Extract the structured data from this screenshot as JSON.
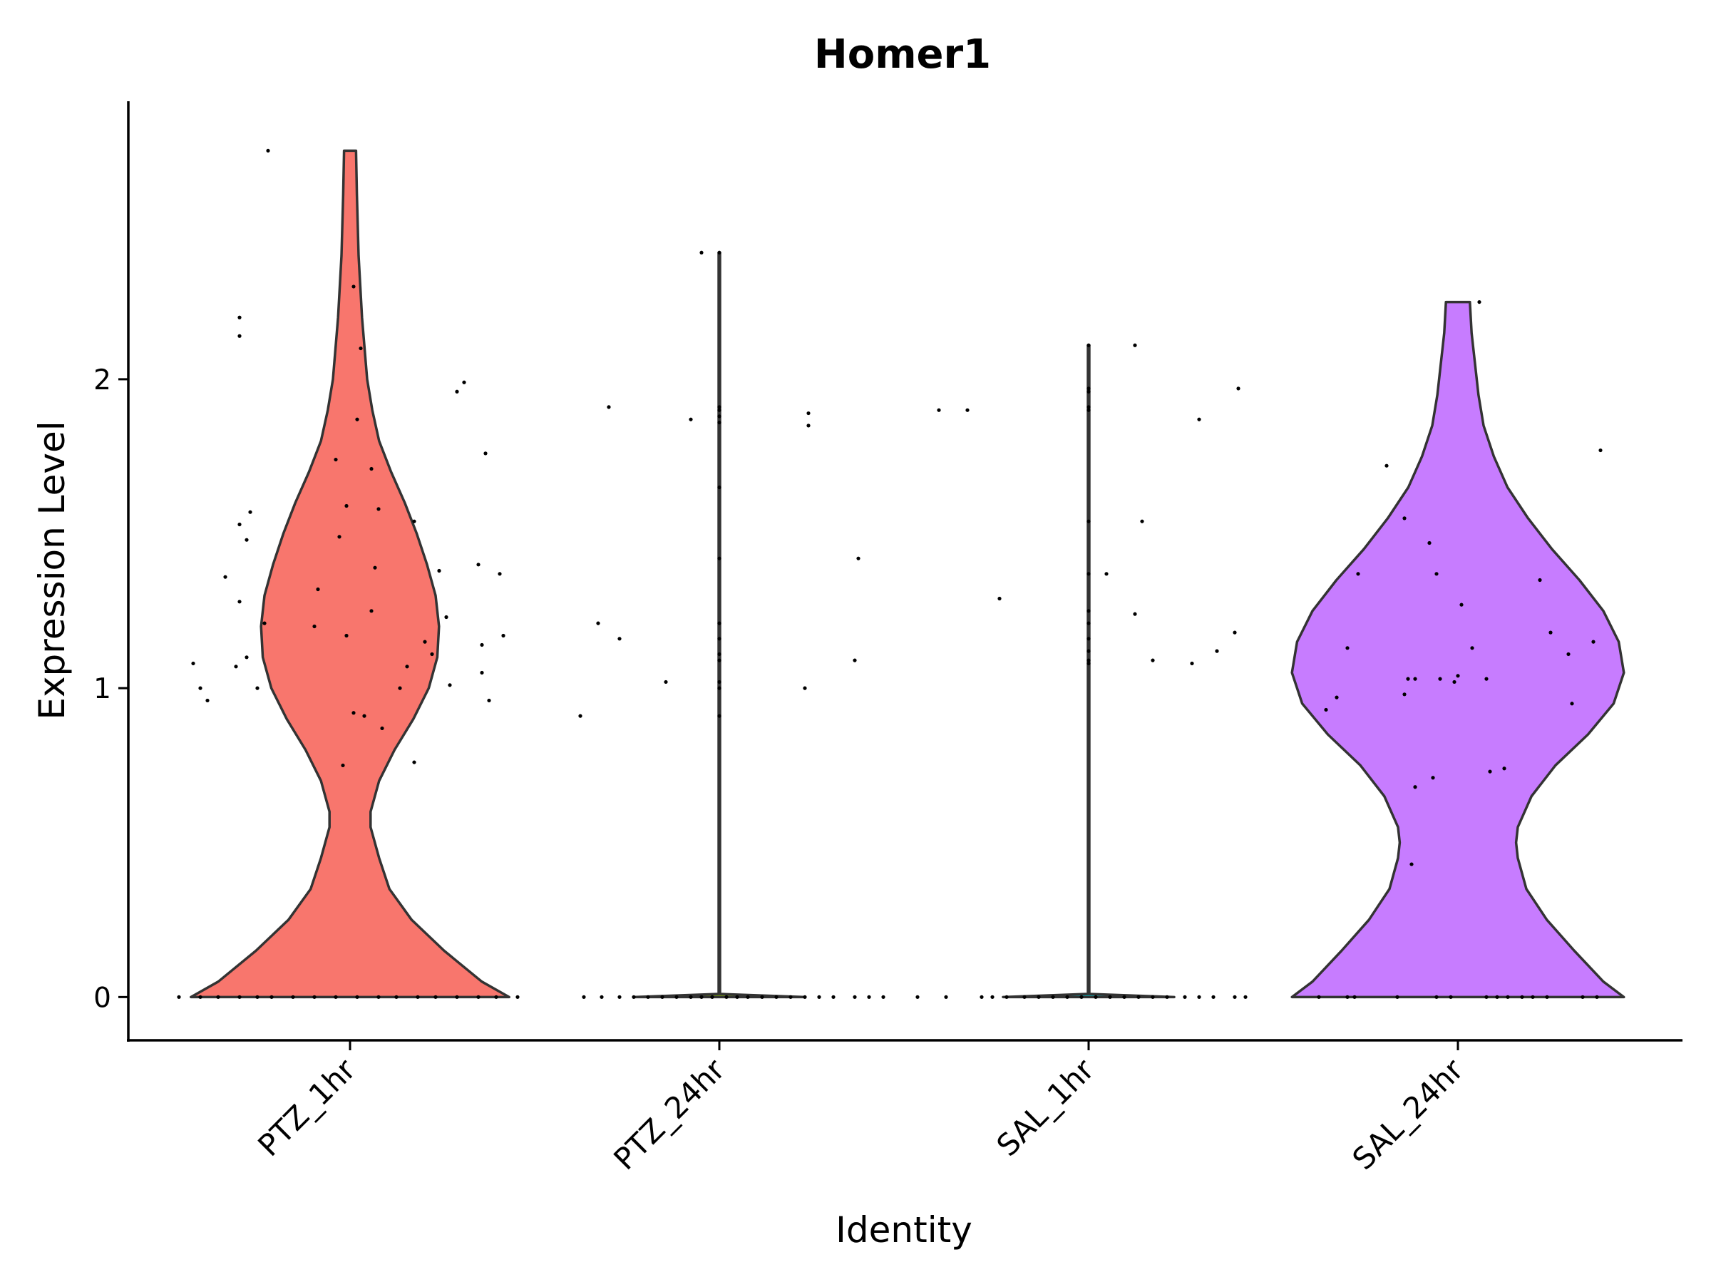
{
  "chart_data": {
    "type": "violin",
    "title": "Homer1",
    "xlabel": "Identity",
    "ylabel": "Expression Level",
    "ylim": [
      -0.14,
      2.9
    ],
    "yticks": [
      0,
      1,
      2
    ],
    "grid": false,
    "legend": "none",
    "categories": [
      "PTZ_1hr",
      "PTZ_24hr",
      "SAL_1hr",
      "SAL_24hr"
    ],
    "series": [
      {
        "category": "PTZ_1hr",
        "color": "#F8766D",
        "max": 2.74,
        "density": [
          [
            0,
            0.93
          ],
          [
            0.05,
            0.77
          ],
          [
            0.15,
            0.55
          ],
          [
            0.25,
            0.36
          ],
          [
            0.35,
            0.23
          ],
          [
            0.45,
            0.17
          ],
          [
            0.55,
            0.12
          ],
          [
            0.6,
            0.12
          ],
          [
            0.7,
            0.17
          ],
          [
            0.8,
            0.26
          ],
          [
            0.9,
            0.37
          ],
          [
            1.0,
            0.46
          ],
          [
            1.1,
            0.51
          ],
          [
            1.2,
            0.52
          ],
          [
            1.3,
            0.5
          ],
          [
            1.4,
            0.45
          ],
          [
            1.5,
            0.39
          ],
          [
            1.6,
            0.32
          ],
          [
            1.7,
            0.24
          ],
          [
            1.8,
            0.17
          ],
          [
            1.9,
            0.13
          ],
          [
            2.0,
            0.1
          ],
          [
            2.2,
            0.07
          ],
          [
            2.4,
            0.05
          ],
          [
            2.6,
            0.04
          ],
          [
            2.74,
            0.035
          ]
        ],
        "points": [
          [
            0,
            -0.48
          ],
          [
            0,
            -0.42
          ],
          [
            0,
            -0.37
          ],
          [
            0,
            -0.31
          ],
          [
            0,
            -0.26
          ],
          [
            0,
            -0.22
          ],
          [
            0,
            -0.16
          ],
          [
            0,
            -0.1
          ],
          [
            0,
            -0.04
          ],
          [
            0,
            0.02
          ],
          [
            0,
            0.08
          ],
          [
            0,
            0.13
          ],
          [
            0,
            0.19
          ],
          [
            0,
            0.24
          ],
          [
            0,
            0.3
          ],
          [
            0,
            0.36
          ],
          [
            0,
            0.41
          ],
          [
            0,
            0.47
          ],
          [
            2.74,
            -0.23
          ],
          [
            2.3,
            0.01
          ],
          [
            2.2,
            -0.31
          ],
          [
            2.14,
            -0.31
          ],
          [
            2.1,
            0.03
          ],
          [
            1.99,
            0.32
          ],
          [
            1.96,
            0.3
          ],
          [
            1.87,
            0.02
          ],
          [
            1.76,
            0.38
          ],
          [
            1.74,
            -0.04
          ],
          [
            1.71,
            0.06
          ],
          [
            1.59,
            -0.01
          ],
          [
            1.58,
            0.08
          ],
          [
            1.57,
            -0.28
          ],
          [
            1.54,
            0.18
          ],
          [
            1.53,
            -0.31
          ],
          [
            1.49,
            -0.03
          ],
          [
            1.48,
            -0.29
          ],
          [
            1.4,
            0.36
          ],
          [
            1.39,
            0.07
          ],
          [
            1.38,
            0.25
          ],
          [
            1.37,
            0.42
          ],
          [
            1.36,
            -0.35
          ],
          [
            1.32,
            -0.09
          ],
          [
            1.28,
            -0.31
          ],
          [
            1.25,
            0.06
          ],
          [
            1.23,
            0.27
          ],
          [
            1.21,
            -0.24
          ],
          [
            1.2,
            -0.1
          ],
          [
            1.17,
            -0.01
          ],
          [
            1.17,
            0.43
          ],
          [
            1.15,
            0.21
          ],
          [
            1.14,
            0.37
          ],
          [
            1.11,
            0.23
          ],
          [
            1.1,
            -0.29
          ],
          [
            1.08,
            -0.44
          ],
          [
            1.07,
            0.16
          ],
          [
            1.07,
            -0.32
          ],
          [
            1.05,
            0.37
          ],
          [
            1.01,
            0.28
          ],
          [
            1.0,
            -0.42
          ],
          [
            1.0,
            -0.26
          ],
          [
            1.0,
            0.14
          ],
          [
            0.96,
            -0.4
          ],
          [
            0.96,
            0.39
          ],
          [
            0.92,
            0.01
          ],
          [
            0.91,
            0.04
          ],
          [
            0.87,
            0.09
          ],
          [
            0.76,
            0.18
          ],
          [
            0.75,
            -0.02
          ]
        ]
      },
      {
        "category": "PTZ_24hr",
        "color": "#7CAE00",
        "max": 2.41,
        "density": [
          [
            0,
            0.5
          ],
          [
            0.01,
            0.004
          ],
          [
            0.2,
            0.004
          ],
          [
            2.41,
            0.004
          ]
        ],
        "points": [
          [
            0,
            -0.38
          ],
          [
            0,
            -0.33
          ],
          [
            0,
            -0.28
          ],
          [
            0,
            -0.24
          ],
          [
            0,
            -0.2
          ],
          [
            0,
            -0.16
          ],
          [
            0,
            -0.12
          ],
          [
            0,
            -0.08
          ],
          [
            0,
            -0.05
          ],
          [
            0,
            -0.02
          ],
          [
            0,
            0.02
          ],
          [
            0,
            0.05
          ],
          [
            0,
            0.08
          ],
          [
            0,
            0.12
          ],
          [
            0,
            0.16
          ],
          [
            0,
            0.2
          ],
          [
            0,
            0.24
          ],
          [
            0,
            0.28
          ],
          [
            0,
            0.32
          ],
          [
            0,
            0.38
          ],
          [
            0,
            0.42
          ],
          [
            0,
            0.46
          ],
          [
            2.41,
            -0.05
          ],
          [
            2.41,
            0.0
          ],
          [
            1.91,
            -0.31
          ],
          [
            1.91,
            0.0
          ],
          [
            1.9,
            0.0
          ],
          [
            1.89,
            0.25
          ],
          [
            1.88,
            0.0
          ],
          [
            1.87,
            -0.08
          ],
          [
            1.86,
            0.0
          ],
          [
            1.85,
            0.25
          ],
          [
            1.65,
            0.0
          ],
          [
            1.42,
            0.0
          ],
          [
            1.42,
            0.39
          ],
          [
            1.21,
            0.0
          ],
          [
            1.21,
            -0.34
          ],
          [
            1.16,
            0.0
          ],
          [
            1.16,
            -0.28
          ],
          [
            1.11,
            0.0
          ],
          [
            1.09,
            0.0
          ],
          [
            1.09,
            0.38
          ],
          [
            1.02,
            0.0
          ],
          [
            1.02,
            -0.15
          ],
          [
            1.0,
            0.0
          ],
          [
            1.0,
            0.24
          ],
          [
            0.91,
            0.0
          ],
          [
            0.91,
            -0.39
          ]
        ]
      },
      {
        "category": "SAL_1hr",
        "color": "#00BFC4",
        "max": 2.11,
        "density": [
          [
            0,
            0.5
          ],
          [
            0.01,
            0.004
          ],
          [
            0.2,
            0.004
          ],
          [
            2.11,
            0.004
          ]
        ],
        "points": [
          [
            0,
            -0.48
          ],
          [
            0,
            -0.4
          ],
          [
            0,
            -0.3
          ],
          [
            0,
            -0.27
          ],
          [
            0,
            -0.23
          ],
          [
            0,
            -0.18
          ],
          [
            0,
            -0.14
          ],
          [
            0,
            -0.1
          ],
          [
            0,
            -0.06
          ],
          [
            0,
            -0.02
          ],
          [
            0,
            0.02
          ],
          [
            0,
            0.06
          ],
          [
            0,
            0.1
          ],
          [
            0,
            0.14
          ],
          [
            0,
            0.18
          ],
          [
            0,
            0.22
          ],
          [
            0,
            0.27
          ],
          [
            0,
            0.31
          ],
          [
            0,
            0.35
          ],
          [
            0,
            0.41
          ],
          [
            0,
            0.44
          ],
          [
            2.11,
            0.0
          ],
          [
            2.11,
            0.13
          ],
          [
            1.97,
            0.0
          ],
          [
            1.97,
            0.42
          ],
          [
            1.96,
            0.0
          ],
          [
            1.91,
            0.0
          ],
          [
            1.9,
            0.0
          ],
          [
            1.9,
            -0.42
          ],
          [
            1.9,
            -0.34
          ],
          [
            1.87,
            0.31
          ],
          [
            1.54,
            0.0
          ],
          [
            1.54,
            0.15
          ],
          [
            1.37,
            0.0
          ],
          [
            1.37,
            0.05
          ],
          [
            1.29,
            -0.25
          ],
          [
            1.25,
            0.0
          ],
          [
            1.24,
            0.13
          ],
          [
            1.21,
            0.0
          ],
          [
            1.18,
            0.41
          ],
          [
            1.16,
            0.0
          ],
          [
            1.12,
            0.0
          ],
          [
            1.12,
            0.36
          ],
          [
            1.09,
            0.0
          ],
          [
            1.09,
            0.18
          ],
          [
            1.08,
            0.0
          ],
          [
            1.08,
            0.29
          ]
        ]
      },
      {
        "category": "SAL_24hr",
        "color": "#C77CFF",
        "max": 2.25,
        "density": [
          [
            0,
            0.97
          ],
          [
            0.05,
            0.85
          ],
          [
            0.15,
            0.68
          ],
          [
            0.25,
            0.52
          ],
          [
            0.35,
            0.4
          ],
          [
            0.45,
            0.35
          ],
          [
            0.5,
            0.34
          ],
          [
            0.55,
            0.35
          ],
          [
            0.65,
            0.43
          ],
          [
            0.75,
            0.57
          ],
          [
            0.85,
            0.76
          ],
          [
            0.95,
            0.91
          ],
          [
            1.05,
            0.97
          ],
          [
            1.15,
            0.94
          ],
          [
            1.25,
            0.85
          ],
          [
            1.35,
            0.71
          ],
          [
            1.45,
            0.55
          ],
          [
            1.55,
            0.41
          ],
          [
            1.65,
            0.29
          ],
          [
            1.75,
            0.21
          ],
          [
            1.85,
            0.15
          ],
          [
            1.95,
            0.12
          ],
          [
            2.05,
            0.1
          ],
          [
            2.15,
            0.08
          ],
          [
            2.25,
            0.07
          ]
        ],
        "points": [
          [
            0,
            -0.39
          ],
          [
            0,
            -0.31
          ],
          [
            0,
            -0.29
          ],
          [
            0,
            -0.17
          ],
          [
            0,
            -0.06
          ],
          [
            0,
            -0.02
          ],
          [
            0,
            0.08
          ],
          [
            0,
            0.11
          ],
          [
            0,
            0.14
          ],
          [
            0,
            0.18
          ],
          [
            0,
            0.21
          ],
          [
            0,
            0.25
          ],
          [
            0,
            0.35
          ],
          [
            0,
            0.39
          ],
          [
            2.25,
            0.06
          ],
          [
            1.77,
            0.4
          ],
          [
            1.72,
            -0.2
          ],
          [
            1.55,
            -0.15
          ],
          [
            1.47,
            -0.08
          ],
          [
            1.37,
            -0.28
          ],
          [
            1.37,
            -0.06
          ],
          [
            1.35,
            0.23
          ],
          [
            1.27,
            0.01
          ],
          [
            1.18,
            0.26
          ],
          [
            1.15,
            0.38
          ],
          [
            1.13,
            0.04
          ],
          [
            1.13,
            -0.31
          ],
          [
            1.11,
            0.31
          ],
          [
            1.04,
            0.0
          ],
          [
            1.03,
            -0.14
          ],
          [
            1.03,
            -0.05
          ],
          [
            1.03,
            -0.12
          ],
          [
            1.03,
            0.08
          ],
          [
            1.02,
            -0.01
          ],
          [
            0.98,
            -0.15
          ],
          [
            0.97,
            -0.34
          ],
          [
            0.95,
            0.32
          ],
          [
            0.93,
            -0.37
          ],
          [
            0.74,
            0.13
          ],
          [
            0.73,
            0.09
          ],
          [
            0.71,
            -0.07
          ],
          [
            0.68,
            -0.12
          ],
          [
            0.43,
            -0.13
          ]
        ]
      }
    ]
  }
}
